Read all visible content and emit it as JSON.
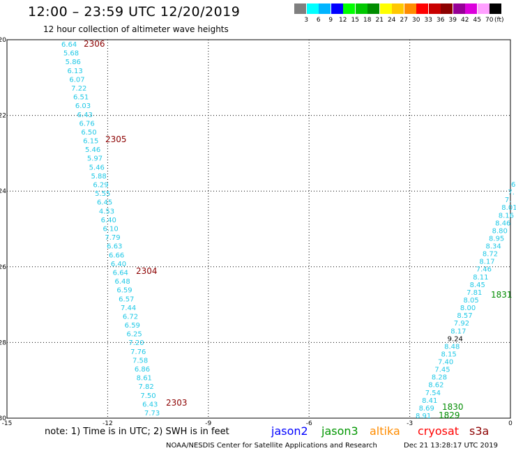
{
  "title": "12:00 – 23:59 UTC 12/20/2019",
  "subtitle": "12 hour collection of altimeter wave heights",
  "scale": {
    "unit": "(ft)",
    "bins": [
      {
        "label": "3",
        "color": "#7f7f7f"
      },
      {
        "label": "6",
        "color": "#00ffff"
      },
      {
        "label": "9",
        "color": "#00b4ff"
      },
      {
        "label": "12",
        "color": "#0000ff"
      },
      {
        "label": "15",
        "color": "#00ff00"
      },
      {
        "label": "18",
        "color": "#00c800"
      },
      {
        "label": "21",
        "color": "#008c00"
      },
      {
        "label": "24",
        "color": "#ffff00"
      },
      {
        "label": "27",
        "color": "#ffc800"
      },
      {
        "label": "30",
        "color": "#ff8c00"
      },
      {
        "label": "33",
        "color": "#ff0000"
      },
      {
        "label": "36",
        "color": "#c80000"
      },
      {
        "label": "39",
        "color": "#8c0000"
      },
      {
        "label": "42",
        "color": "#960096"
      },
      {
        "label": "45",
        "color": "#dc00dc"
      },
      {
        "label": "70",
        "color": "#ffa0ff"
      },
      {
        "label": "",
        "color": "#000000"
      }
    ]
  },
  "axes": {
    "lat_ticks": [
      "-20",
      "-22",
      "-24",
      "-26",
      "-28",
      "-30"
    ],
    "lon_ticks": [
      "-15",
      "-12",
      "-9",
      "-6",
      "-3",
      "0"
    ]
  },
  "colors": {
    "swh_label": "#1ec8e6",
    "track_time_cryosat": "#8c0000",
    "track_time_jason3": "#008c00",
    "jason2": "#0000ff",
    "jason3": "#009600",
    "altika": "#ff8c00",
    "cryosat": "#ff0000",
    "s3a": "#8c0000"
  },
  "track1": {
    "values": [
      "6.64",
      "5.68",
      "5.86",
      "6.13",
      "6.07",
      "7.22",
      "6.51",
      "6.03",
      "6.43",
      "6.76",
      "6.50",
      "6.15",
      "5.46",
      "5.97",
      "5.46",
      "5.88",
      "6.29",
      "5.55",
      "6.45",
      "4.53",
      "6.40",
      "6.10",
      "7.79",
      "6.63",
      "6.66",
      "6.40",
      "6.64",
      "6.48",
      "6.59",
      "6.57",
      "7.44",
      "6.72",
      "6.59",
      "6.25",
      "7.20",
      "7.76",
      "7.58",
      "6.86",
      "8.61",
      "7.82",
      "7.50",
      "6.43",
      "7.73"
    ],
    "times": [
      "2306",
      "2305",
      "2304",
      "2303"
    ]
  },
  "track2": {
    "values": [
      "6",
      "7.",
      "7.",
      "8.01",
      "8.16",
      "8.46",
      "8.80",
      "8.95",
      "8.34",
      "8.72",
      "8.17",
      "7.46",
      "8.11",
      "8.45",
      "7.81",
      "8.05",
      "8.00",
      "8.57",
      "7.92",
      "8.17",
      "9.24",
      "8.48",
      "8.15",
      "7.40",
      "7.45",
      "8.28",
      "8.62",
      "7.54",
      "8.41",
      "8.69",
      "8.91"
    ],
    "times": [
      "1831",
      "1830",
      "1829"
    ]
  },
  "footer": {
    "note": "note:  1) Time is in UTC;  2) SWH is in feet",
    "jason2": "jason2",
    "jason3": "jason3",
    "altika": "altika",
    "cryosat": "cryosat",
    "s3a": "s3a",
    "credit": "NOAA/NESDIS Center for Satellite Applications and Research",
    "stamp": "Dec 21 13:28:17 UTC 2019"
  }
}
